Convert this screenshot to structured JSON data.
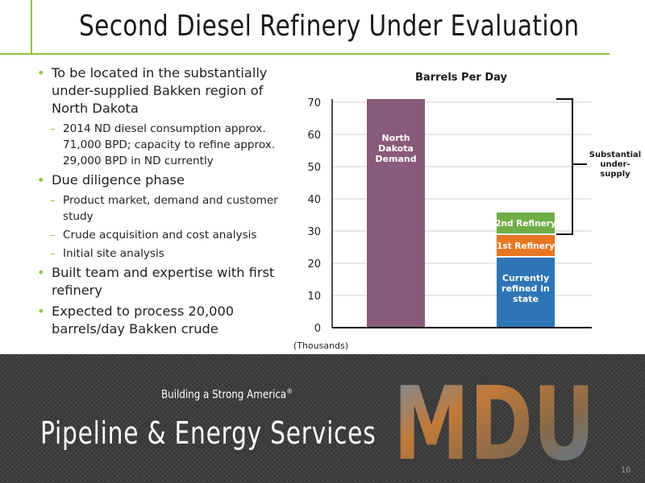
{
  "slide": {
    "title": "Second Diesel Refinery Under Evaluation",
    "page_number": "16"
  },
  "bullets": [
    {
      "text": "To be located in the substantially under-supplied Bakken region of North Dakota",
      "subs": [
        "2014 ND diesel consumption approx. 71,000 BPD; capacity to refine approx. 29,000 BPD in ND currently"
      ]
    },
    {
      "text": "Due diligence phase",
      "subs": [
        "Product market, demand and customer study",
        "Crude acquisition and cost analysis",
        "Initial site analysis"
      ]
    },
    {
      "text": "Built team and expertise with first refinery",
      "subs": []
    },
    {
      "text": "Expected to process 20,000 barrels/day Bakken crude",
      "subs": []
    }
  ],
  "footer": {
    "tagline": "Building a Strong America",
    "tagline_mark": "®",
    "company": "Pipeline & Energy Services",
    "logo_text": "MDU"
  },
  "chart_data": {
    "type": "bar",
    "title": "Barrels Per Day",
    "xlabel": "",
    "ylabel": "(Thousands)",
    "ylim": [
      0,
      70
    ],
    "yticks": [
      0,
      10,
      20,
      30,
      40,
      50,
      60,
      70
    ],
    "grid": true,
    "bars": [
      {
        "value": 71,
        "color": "#8a5a7a",
        "label_lines": [
          "North",
          "Dakota",
          "Demand"
        ]
      },
      {
        "stacked": true,
        "segments": [
          {
            "value": 22,
            "color": "#2e75b6",
            "label_lines": [
              "Currently",
              "refined in",
              "state"
            ]
          },
          {
            "value": 7,
            "color": "#e87722",
            "label_lines": [
              "1st Refinery"
            ]
          },
          {
            "value": 7,
            "color": "#70ad47",
            "label_lines": [
              "2nd Refinery"
            ]
          }
        ]
      }
    ],
    "annotation_lines": [
      "Substantial",
      "under-",
      "supply"
    ]
  }
}
